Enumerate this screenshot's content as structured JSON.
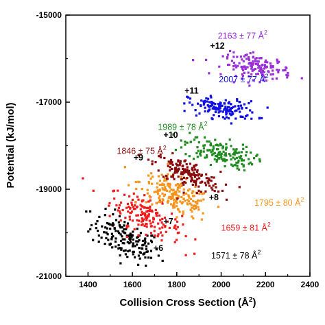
{
  "chart_data": {
    "type": "scatter",
    "title": "",
    "xlabel": "Collision Cross Section (Å",
    "xlabel_sup": "2",
    "xlabel_end": ")",
    "ylabel": "Potential (kJ/mol)",
    "xlim": [
      1300,
      2400
    ],
    "ylim": [
      -21000,
      -15000
    ],
    "x_ticks": [
      1400,
      1600,
      1800,
      2000,
      2200,
      2400
    ],
    "y_ticks": [
      -21000,
      -19000,
      -17000,
      -15000
    ],
    "x_tick_labels": [
      "1400",
      "1600",
      "1800",
      "2000",
      "2200",
      "2400"
    ],
    "y_tick_labels": [
      "-21000",
      "-19000",
      "-17000",
      "-15000"
    ],
    "grid": false,
    "legend": "none",
    "series": [
      {
        "charge": "+6",
        "label": "1571 ± 78 Å",
        "label_sup": "2",
        "color": "#000000",
        "center_x": 1571,
        "center_y": -20150,
        "spread_x": 78,
        "spread_y": 230,
        "slope": -2.2,
        "n": 160
      },
      {
        "charge": "+7",
        "label": "1659 ± 81 Å",
        "label_sup": "2",
        "color": "#ee1c1c",
        "center_x": 1659,
        "center_y": -19600,
        "spread_x": 81,
        "spread_y": 200,
        "slope": -2.2,
        "n": 170
      },
      {
        "charge": "+8",
        "label": "1795 ± 80 Å",
        "label_sup": "2",
        "color": "#f7941d",
        "center_x": 1795,
        "center_y": -19150,
        "spread_x": 80,
        "spread_y": 200,
        "slope": -2.0,
        "n": 190
      },
      {
        "charge": "+9",
        "label": "1846 ± 75 Å",
        "label_sup": "2",
        "color": "#8b0d0d",
        "center_x": 1846,
        "center_y": -18650,
        "spread_x": 75,
        "spread_y": 160,
        "slope": -1.8,
        "n": 170
      },
      {
        "charge": "+10",
        "label": "1989 ± 78 Å",
        "label_sup": "2",
        "color": "#1e8c1e",
        "center_x": 1989,
        "center_y": -18150,
        "spread_x": 78,
        "spread_y": 150,
        "slope": -1.2,
        "n": 150
      },
      {
        "charge": "+11",
        "label": "2007 ± 77 Å",
        "label_sup": "2",
        "color": "#1010e0",
        "center_x": 2007,
        "center_y": -17150,
        "spread_x": 77,
        "spread_y": 120,
        "slope": -0.6,
        "n": 140
      },
      {
        "charge": "+12",
        "label": "2163 ± 77 Å",
        "label_sup": "2",
        "color": "#9b30d9",
        "center_x": 2163,
        "center_y": -16200,
        "spread_x": 77,
        "spread_y": 140,
        "slope": -0.5,
        "n": 150
      }
    ],
    "annotations": [
      {
        "series": 6,
        "value_at": [
          1985,
          -15540
        ],
        "charge_at": [
          1950,
          -15770
        ]
      },
      {
        "series": 5,
        "value_at": [
          1990,
          -16540
        ],
        "charge_at": [
          1835,
          -16800
        ]
      },
      {
        "series": 4,
        "value_at": [
          1715,
          -17640
        ],
        "charge_at": [
          1740,
          -17820
        ]
      },
      {
        "series": 3,
        "value_at": [
          1530,
          -18190
        ],
        "charge_at": [
          1605,
          -18340
        ]
      },
      {
        "series": 2,
        "value_at": [
          2150,
          -19380
        ],
        "charge_at": [
          1945,
          -19250
        ]
      },
      {
        "series": 1,
        "value_at": [
          2000,
          -19950
        ],
        "charge_at": [
          1740,
          -19800
        ]
      },
      {
        "series": 0,
        "value_at": [
          1955,
          -20590
        ],
        "charge_at": [
          1695,
          -20420
        ]
      }
    ]
  }
}
